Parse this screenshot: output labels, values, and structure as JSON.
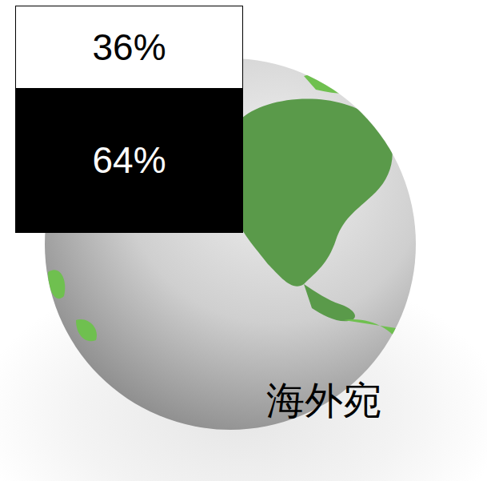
{
  "chart_data": {
    "type": "bar",
    "stacked": true,
    "data_labels": true,
    "tick_labels": false,
    "categories": [
      null
    ],
    "series": [
      {
        "color": "#000000",
        "values": [
          64
        ],
        "value_labels": [
          "64%"
        ]
      },
      {
        "color": "#ffffff",
        "values": [
          36
        ],
        "value_labels": [
          "36%"
        ]
      }
    ],
    "ylim": [
      0,
      100
    ],
    "yticks": [],
    "annotation": "海外宛"
  }
}
